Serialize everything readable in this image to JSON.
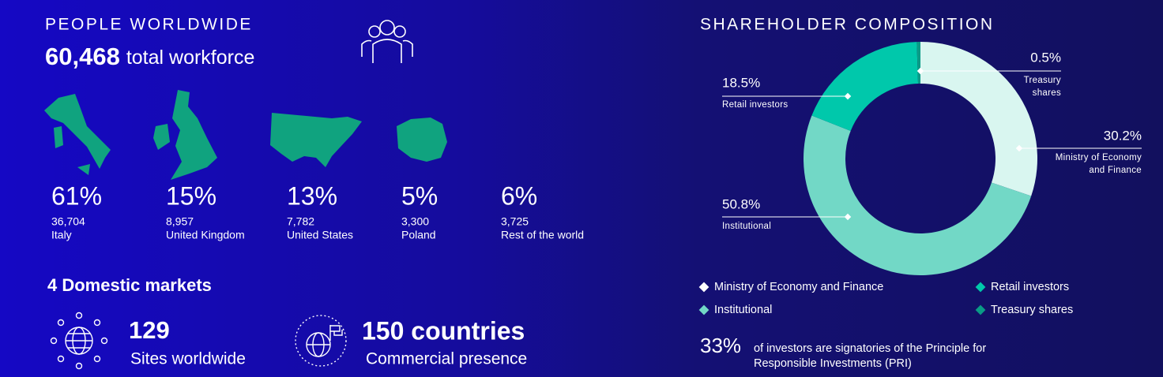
{
  "people": {
    "title": "PEOPLE WORLDWIDE",
    "total": "60,468",
    "total_label": "total workforce",
    "countries": [
      {
        "share": "61%",
        "count": "36,704",
        "name": "Italy"
      },
      {
        "share": "15%",
        "count": "8,957",
        "name": "United Kingdom"
      },
      {
        "share": "13%",
        "count": "7,782",
        "name": "United States"
      },
      {
        "share": "5%",
        "count": "3,300",
        "name": "Poland"
      },
      {
        "share": "6%",
        "count": "3,725",
        "name": "Rest of the world"
      }
    ]
  },
  "markets": {
    "title": "4 Domestic markets",
    "sites": {
      "value": "129",
      "label": "Sites worldwide"
    },
    "presence": {
      "value": "150 countries",
      "label": "Commercial presence"
    }
  },
  "chart_data": {
    "type": "donut",
    "title": "SHAREHOLDER COMPOSITION",
    "categories": [
      "Ministry of Economy and Finance",
      "Institutional",
      "Retail investors",
      "Treasury shares"
    ],
    "values": [
      30.2,
      50.8,
      18.5,
      0.5
    ],
    "value_labels": [
      "30.2%",
      "50.8%",
      "18.5%",
      "0.5%"
    ],
    "colors": [
      "#d9f6f0",
      "#72d8c6",
      "#00c8ab",
      "#0a9b86"
    ],
    "legend": "bottom"
  },
  "footnote": {
    "value": "33%",
    "text": "of investors are signatories of the Principle for Responsible Investments (PRI)"
  }
}
